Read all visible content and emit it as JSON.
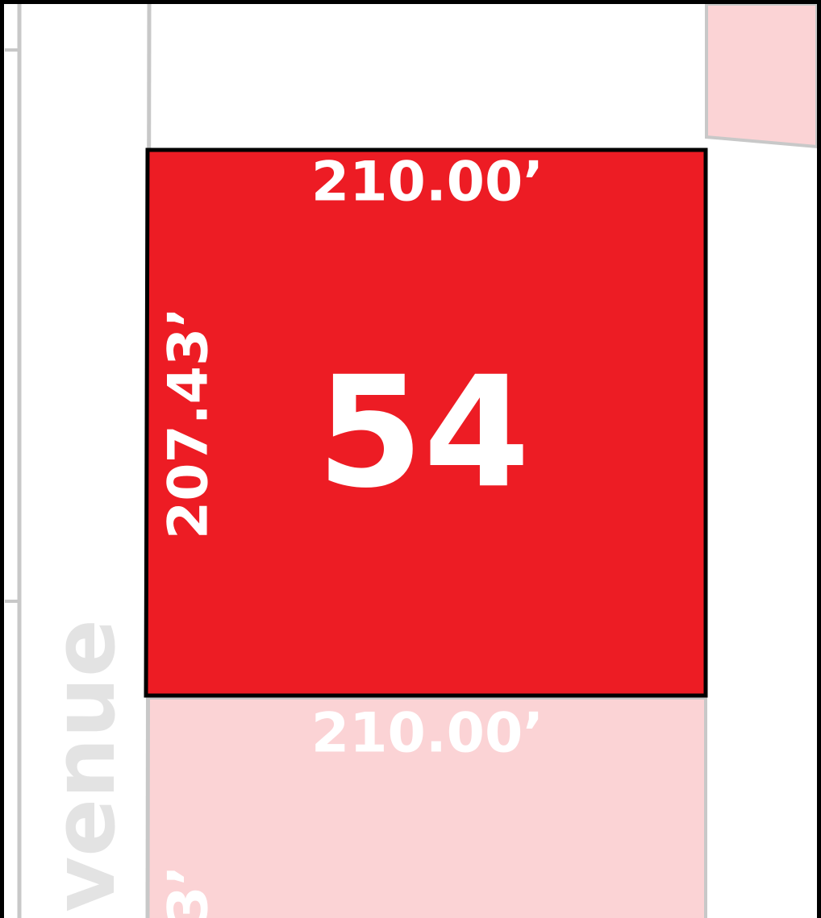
{
  "lot": {
    "number": "54",
    "top_frontage": "210.00’",
    "side_depth": "207.43’"
  },
  "neighbor_lot": {
    "frontage": "210.00’",
    "depth_fragment": "3’"
  },
  "street": {
    "name_fragment": "venue"
  }
}
